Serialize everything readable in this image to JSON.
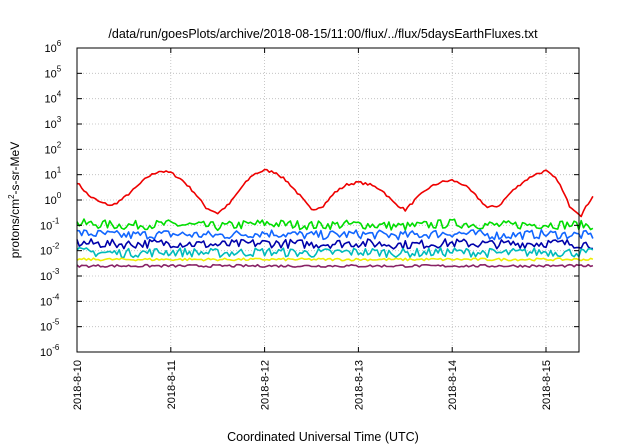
{
  "chart_data": {
    "type": "line",
    "title": "/data/run/goesPlots/archive/2018-08-15/11:00/flux/../flux/5daysEarthFluxes.txt",
    "xlabel": "Coordinated Universal Time (UTC)",
    "ylabel": "protons/cm2-s-sr-MeV",
    "ylabel_parts": {
      "pre": "protons/cm",
      "sup": "2",
      "post": "-s-sr-MeV"
    },
    "yscale": "log",
    "ylim": [
      1e-06,
      1000000.0
    ],
    "xlim": [
      "2018-08-10 00:00",
      "2018-08-15 12:00"
    ],
    "grid": true,
    "legend": "none",
    "x_ticks": [
      "2018-8-10",
      "2018-8-11",
      "2018-8-12",
      "2018-8-13",
      "2018-8-14",
      "2018-8-15"
    ],
    "y_ticks": [
      {
        "base": "10",
        "exp": "-6",
        "value": 1e-06
      },
      {
        "base": "10",
        "exp": "-5",
        "value": 1e-05
      },
      {
        "base": "10",
        "exp": "-4",
        "value": 0.0001
      },
      {
        "base": "10",
        "exp": "-3",
        "value": 0.001
      },
      {
        "base": "10",
        "exp": "-2",
        "value": 0.01
      },
      {
        "base": "10",
        "exp": "-1",
        "value": 0.1
      },
      {
        "base": "10",
        "exp": "0",
        "value": 1
      },
      {
        "base": "10",
        "exp": "1",
        "value": 10
      },
      {
        "base": "10",
        "exp": "2",
        "value": 100
      },
      {
        "base": "10",
        "exp": "3",
        "value": 1000
      },
      {
        "base": "10",
        "exp": "4",
        "value": 10000
      },
      {
        "base": "10",
        "exp": "5",
        "value": 100000
      },
      {
        "base": "10",
        "exp": "6",
        "value": 1000000
      }
    ],
    "series": [
      {
        "color": "#ee0000",
        "values": [
          [
            "2018-08-10 00:00",
            5
          ],
          [
            "2018-08-10 03:00",
            1.5
          ],
          [
            "2018-08-10 06:00",
            0.8
          ],
          [
            "2018-08-10 09:00",
            0.6
          ],
          [
            "2018-08-10 12:00",
            1.2
          ],
          [
            "2018-08-10 15:00",
            3
          ],
          [
            "2018-08-10 18:00",
            8
          ],
          [
            "2018-08-10 21:00",
            14
          ],
          [
            "2018-08-11 00:00",
            12
          ],
          [
            "2018-08-11 03:00",
            6
          ],
          [
            "2018-08-11 06:00",
            2
          ],
          [
            "2018-08-11 09:00",
            0.5
          ],
          [
            "2018-08-11 12:00",
            0.3
          ],
          [
            "2018-08-11 15:00",
            0.7
          ],
          [
            "2018-08-11 18:00",
            3
          ],
          [
            "2018-08-11 21:00",
            10
          ],
          [
            "2018-08-12 00:00",
            15
          ],
          [
            "2018-08-12 03:00",
            12
          ],
          [
            "2018-08-12 06:00",
            5
          ],
          [
            "2018-08-12 09:00",
            1.5
          ],
          [
            "2018-08-12 12:00",
            0.4
          ],
          [
            "2018-08-12 15:00",
            0.6
          ],
          [
            "2018-08-12 18:00",
            2
          ],
          [
            "2018-08-12 21:00",
            4
          ],
          [
            "2018-08-13 00:00",
            5
          ],
          [
            "2018-08-13 03:00",
            4
          ],
          [
            "2018-08-13 06:00",
            2.5
          ],
          [
            "2018-08-13 09:00",
            0.8
          ],
          [
            "2018-08-13 12:00",
            0.4
          ],
          [
            "2018-08-13 15:00",
            1.2
          ],
          [
            "2018-08-13 18:00",
            3
          ],
          [
            "2018-08-13 21:00",
            5
          ],
          [
            "2018-08-14 00:00",
            6
          ],
          [
            "2018-08-14 03:00",
            4
          ],
          [
            "2018-08-14 06:00",
            1.5
          ],
          [
            "2018-08-14 09:00",
            0.5
          ],
          [
            "2018-08-14 12:00",
            0.6
          ],
          [
            "2018-08-14 15:00",
            2
          ],
          [
            "2018-08-14 18:00",
            5
          ],
          [
            "2018-08-14 21:00",
            10
          ],
          [
            "2018-08-15 00:00",
            14
          ],
          [
            "2018-08-15 03:00",
            6
          ],
          [
            "2018-08-15 06:00",
            0.6
          ],
          [
            "2018-08-15 09:00",
            0.25
          ],
          [
            "2018-08-15 12:00",
            1.5
          ]
        ]
      },
      {
        "color": "#00dd00",
        "values": [
          [
            "2018-08-10 00:00",
            0.12
          ],
          [
            "2018-08-10 12:00",
            0.1
          ],
          [
            "2018-08-11 00:00",
            0.11
          ],
          [
            "2018-08-11 12:00",
            0.09
          ],
          [
            "2018-08-12 00:00",
            0.12
          ],
          [
            "2018-08-12 12:00",
            0.1
          ],
          [
            "2018-08-13 00:00",
            0.11
          ],
          [
            "2018-08-13 12:00",
            0.09
          ],
          [
            "2018-08-14 00:00",
            0.12
          ],
          [
            "2018-08-14 12:00",
            0.1
          ],
          [
            "2018-08-15 00:00",
            0.11
          ],
          [
            "2018-08-15 12:00",
            0.1
          ]
        ]
      },
      {
        "color": "#1166ff",
        "values": [
          [
            "2018-08-10 00:00",
            0.05
          ],
          [
            "2018-08-10 12:00",
            0.04
          ],
          [
            "2018-08-11 00:00",
            0.045
          ],
          [
            "2018-08-11 12:00",
            0.04
          ],
          [
            "2018-08-12 00:00",
            0.05
          ],
          [
            "2018-08-12 12:00",
            0.04
          ],
          [
            "2018-08-13 00:00",
            0.045
          ],
          [
            "2018-08-13 12:00",
            0.04
          ],
          [
            "2018-08-14 00:00",
            0.05
          ],
          [
            "2018-08-14 12:00",
            0.04
          ],
          [
            "2018-08-15 00:00",
            0.045
          ],
          [
            "2018-08-15 12:00",
            0.04
          ]
        ]
      },
      {
        "color": "#0000aa",
        "values": [
          [
            "2018-08-10 00:00",
            0.02
          ],
          [
            "2018-08-10 12:00",
            0.018
          ],
          [
            "2018-08-11 00:00",
            0.02
          ],
          [
            "2018-08-11 12:00",
            0.017
          ],
          [
            "2018-08-12 00:00",
            0.02
          ],
          [
            "2018-08-12 12:00",
            0.018
          ],
          [
            "2018-08-13 00:00",
            0.02
          ],
          [
            "2018-08-13 12:00",
            0.017
          ],
          [
            "2018-08-14 00:00",
            0.02
          ],
          [
            "2018-08-14 12:00",
            0.018
          ],
          [
            "2018-08-15 00:00",
            0.02
          ],
          [
            "2018-08-15 12:00",
            0.018
          ]
        ]
      },
      {
        "color": "#00bbbb",
        "values": [
          [
            "2018-08-10 00:00",
            0.009
          ],
          [
            "2018-08-10 12:00",
            0.008
          ],
          [
            "2018-08-11 00:00",
            0.009
          ],
          [
            "2018-08-11 12:00",
            0.008
          ],
          [
            "2018-08-12 00:00",
            0.009
          ],
          [
            "2018-08-12 12:00",
            0.008
          ],
          [
            "2018-08-13 00:00",
            0.009
          ],
          [
            "2018-08-13 12:00",
            0.008
          ],
          [
            "2018-08-14 00:00",
            0.009
          ],
          [
            "2018-08-14 12:00",
            0.008
          ],
          [
            "2018-08-15 00:00",
            0.009
          ],
          [
            "2018-08-15 12:00",
            0.008
          ]
        ]
      },
      {
        "color": "#eeee00",
        "values": [
          [
            "2018-08-10 00:00",
            0.0045
          ],
          [
            "2018-08-10 12:00",
            0.0045
          ],
          [
            "2018-08-11 00:00",
            0.0045
          ],
          [
            "2018-08-11 12:00",
            0.0045
          ],
          [
            "2018-08-12 00:00",
            0.0045
          ],
          [
            "2018-08-12 12:00",
            0.0045
          ],
          [
            "2018-08-13 00:00",
            0.0045
          ],
          [
            "2018-08-13 12:00",
            0.0045
          ],
          [
            "2018-08-14 00:00",
            0.0045
          ],
          [
            "2018-08-14 12:00",
            0.0045
          ],
          [
            "2018-08-15 00:00",
            0.0045
          ],
          [
            "2018-08-15 12:00",
            0.0045
          ]
        ]
      },
      {
        "color": "#882266",
        "values": [
          [
            "2018-08-10 00:00",
            0.0025
          ],
          [
            "2018-08-10 12:00",
            0.0025
          ],
          [
            "2018-08-11 00:00",
            0.0025
          ],
          [
            "2018-08-11 12:00",
            0.0025
          ],
          [
            "2018-08-12 00:00",
            0.0025
          ],
          [
            "2018-08-12 12:00",
            0.0025
          ],
          [
            "2018-08-13 00:00",
            0.0025
          ],
          [
            "2018-08-13 12:00",
            0.0025
          ],
          [
            "2018-08-14 00:00",
            0.0025
          ],
          [
            "2018-08-14 12:00",
            0.0025
          ],
          [
            "2018-08-15 00:00",
            0.0025
          ],
          [
            "2018-08-15 12:00",
            0.0025
          ]
        ]
      }
    ]
  }
}
